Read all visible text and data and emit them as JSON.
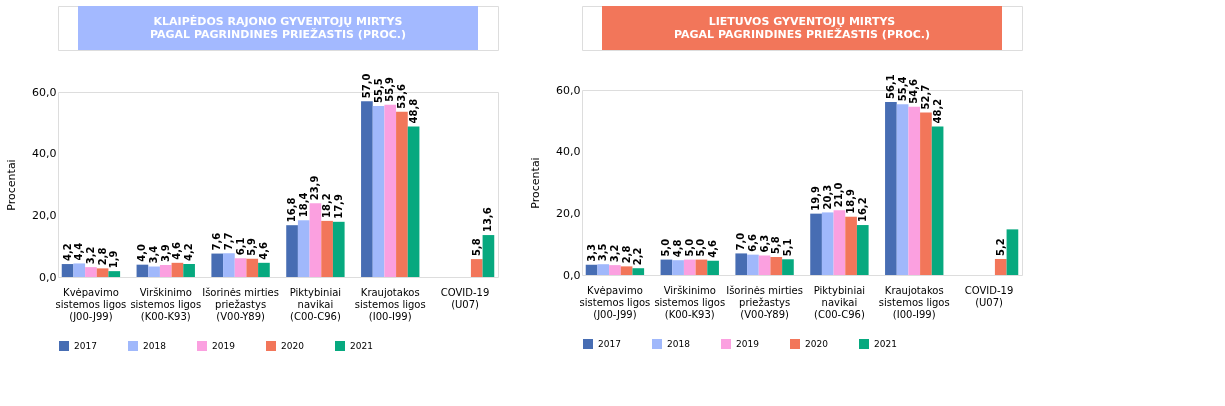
{
  "chart_data": [
    {
      "type": "bar",
      "title": "KLAIPĖDOS RAJONO GYVENTOJŲ MIRTYS\nPAGAL PAGRINDINES PRIEŽASTIS (PROC.)",
      "ylabel": "Procentai",
      "categories": [
        "Kvėpavimo\nsistemos ligos\n(J00-J99)",
        "Virškinimo\nsistemos ligos\n(K00-K93)",
        "Išorinės mirties\npriežastys\n(V00-Y89)",
        "Piktybiniai\nnavikai\n(C00-C96)",
        "Kraujotakos\nsistemos ligos\n(I00-I99)",
        "COVID-19\n(U07)"
      ],
      "series": [
        {
          "name": "2017",
          "color": "#476db3",
          "values": [
            4.2,
            4.0,
            7.6,
            16.8,
            57.0,
            null
          ],
          "value_labels": [
            "4,2",
            "4,0",
            "7,6",
            "16,8",
            "57,0",
            null
          ]
        },
        {
          "name": "2018",
          "color": "#a0b8fb",
          "values": [
            4.4,
            3.4,
            7.7,
            18.4,
            55.5,
            null
          ],
          "value_labels": [
            "4,4",
            "3,4",
            "7,7",
            "18,4",
            "55,5",
            null
          ]
        },
        {
          "name": "2019",
          "color": "#fba0e0",
          "values": [
            3.2,
            3.9,
            6.1,
            23.9,
            55.9,
            null
          ],
          "value_labels": [
            "3,2",
            "3,9",
            "6,1",
            "23,9",
            "55,9",
            null
          ]
        },
        {
          "name": "2020",
          "color": "#f2765a",
          "values": [
            2.8,
            4.6,
            5.9,
            18.2,
            53.6,
            5.8
          ],
          "value_labels": [
            "2,8",
            "4,6",
            "5,9",
            "18,2",
            "53,6",
            "5,8"
          ]
        },
        {
          "name": "2021",
          "color": "#07a97f",
          "values": [
            1.9,
            4.2,
            4.6,
            17.9,
            48.8,
            13.6
          ],
          "value_labels": [
            "1,9",
            "4,2",
            "4,6",
            "17,9",
            "48,8",
            "13,6"
          ]
        }
      ],
      "ylim": [
        0,
        60
      ],
      "yticks": [
        {
          "value": 0,
          "label": "0,0"
        },
        {
          "value": 20,
          "label": "20,0"
        },
        {
          "value": 40,
          "label": "40,0"
        },
        {
          "value": 60,
          "label": "60,0"
        }
      ],
      "legend": "bottom",
      "grid": false
    },
    {
      "type": "bar",
      "title": "LIETUVOS GYVENTOJŲ MIRTYS\nPAGAL PAGRINDINES PRIEŽASTIS (PROC.)",
      "ylabel": "Procentai",
      "categories": [
        "Kvėpavimo\nsistemos ligos\n(J00-J99)",
        "Virškinimo\nsistemos ligos\n(K00-K93)",
        "Išorinės mirties\npriežastys\n(V00-Y89)",
        "Piktybiniai\nnavikai\n(C00-C96)",
        "Kraujotakos\nsistemos ligos\n(I00-I99)",
        "COVID-19\n(U07)"
      ],
      "series": [
        {
          "name": "2017",
          "color": "#476db3",
          "values": [
            3.3,
            5.0,
            7.0,
            19.9,
            56.1,
            null
          ],
          "value_labels": [
            "3,3",
            "5,0",
            "7,0",
            "19,9",
            "56,1",
            null
          ]
        },
        {
          "name": "2018",
          "color": "#a0b8fb",
          "values": [
            3.5,
            4.8,
            6.6,
            20.3,
            55.4,
            null
          ],
          "value_labels": [
            "3,5",
            "4,8",
            "6,6",
            "20,3",
            "55,4",
            null
          ]
        },
        {
          "name": "2019",
          "color": "#fba0e0",
          "values": [
            3.2,
            5.0,
            6.3,
            21.0,
            54.6,
            null
          ],
          "value_labels": [
            "3,2",
            "5,0",
            "6,3",
            "21,0",
            "54,6",
            null
          ]
        },
        {
          "name": "2020",
          "color": "#f2765a",
          "values": [
            2.8,
            5.0,
            5.8,
            18.9,
            52.7,
            5.2
          ],
          "value_labels": [
            "2,8",
            "5,0",
            "5,8",
            "18,9",
            "52,7",
            "5,2"
          ]
        },
        {
          "name": "2021",
          "color": "#07a97f",
          "values": [
            2.2,
            4.6,
            5.1,
            16.2,
            48.2,
            14.8
          ],
          "value_labels": [
            "2,2",
            "4,6",
            "5,1",
            "16,2",
            "48,2",
            null
          ]
        }
      ],
      "ylim": [
        0,
        60
      ],
      "yticks": [
        {
          "value": 0,
          "label": "0,0"
        },
        {
          "value": 20,
          "label": "20,0"
        },
        {
          "value": 40,
          "label": "40,0"
        },
        {
          "value": 60,
          "label": "60,0"
        }
      ],
      "legend": "bottom",
      "grid": false
    }
  ]
}
